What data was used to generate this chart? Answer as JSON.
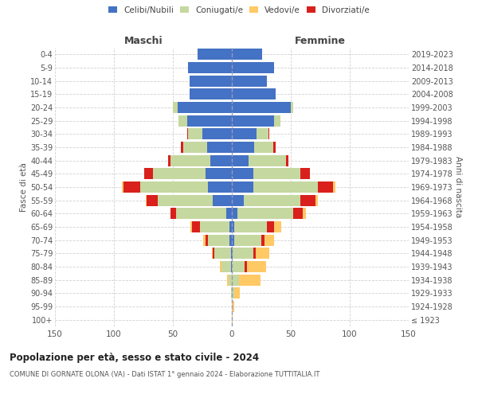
{
  "age_groups": [
    "100+",
    "95-99",
    "90-94",
    "85-89",
    "80-84",
    "75-79",
    "70-74",
    "65-69",
    "60-64",
    "55-59",
    "50-54",
    "45-49",
    "40-44",
    "35-39",
    "30-34",
    "25-29",
    "20-24",
    "15-19",
    "10-14",
    "5-9",
    "0-4"
  ],
  "birth_years": [
    "≤ 1923",
    "1924-1928",
    "1929-1933",
    "1934-1938",
    "1939-1943",
    "1944-1948",
    "1949-1953",
    "1954-1958",
    "1959-1963",
    "1964-1968",
    "1969-1973",
    "1974-1978",
    "1979-1983",
    "1984-1988",
    "1989-1993",
    "1994-1998",
    "1999-2003",
    "2004-2008",
    "2009-2013",
    "2014-2018",
    "2019-2023"
  ],
  "maschi": {
    "celibi": [
      0,
      0,
      0,
      0,
      1,
      1,
      2,
      2,
      5,
      16,
      20,
      22,
      18,
      21,
      25,
      38,
      46,
      36,
      36,
      37,
      29
    ],
    "coniugati": [
      0,
      0,
      1,
      3,
      8,
      14,
      18,
      25,
      42,
      47,
      58,
      45,
      34,
      20,
      12,
      7,
      4,
      0,
      0,
      0,
      0
    ],
    "vedovi": [
      0,
      0,
      0,
      1,
      1,
      1,
      2,
      1,
      0,
      1,
      1,
      0,
      0,
      0,
      0,
      0,
      0,
      0,
      0,
      0,
      0
    ],
    "divorziati": [
      0,
      0,
      0,
      0,
      0,
      1,
      2,
      7,
      5,
      9,
      14,
      7,
      2,
      2,
      1,
      0,
      0,
      0,
      0,
      0,
      0
    ]
  },
  "femmine": {
    "nubili": [
      0,
      0,
      0,
      0,
      0,
      1,
      2,
      2,
      5,
      10,
      18,
      18,
      14,
      19,
      21,
      36,
      50,
      37,
      30,
      36,
      26
    ],
    "coniugate": [
      0,
      1,
      2,
      6,
      11,
      17,
      23,
      28,
      47,
      48,
      55,
      40,
      32,
      16,
      10,
      5,
      2,
      0,
      0,
      0,
      0
    ],
    "vedove": [
      1,
      1,
      5,
      18,
      16,
      12,
      8,
      6,
      3,
      2,
      2,
      0,
      0,
      0,
      0,
      0,
      0,
      0,
      0,
      0,
      0
    ],
    "divorziate": [
      0,
      0,
      0,
      0,
      2,
      2,
      3,
      6,
      8,
      13,
      13,
      8,
      2,
      2,
      1,
      0,
      0,
      0,
      0,
      0,
      0
    ]
  },
  "colors": {
    "celibi": "#4472c4",
    "coniugati": "#c5d8a0",
    "vedovi": "#ffc966",
    "divorziati": "#d9201c"
  },
  "xlim": 150,
  "title": "Popolazione per età, sesso e stato civile - 2024",
  "subtitle": "COMUNE DI GORNATE OLONA (VA) - Dati ISTAT 1° gennaio 2024 - Elaborazione TUTTITALIA.IT",
  "ylabel_left": "Fasce di età",
  "ylabel_right": "Anni di nascita",
  "xlabel_left": "Maschi",
  "xlabel_right": "Femmine",
  "bg_color": "#ffffff",
  "grid_color": "#cccccc",
  "bar_height": 0.85
}
